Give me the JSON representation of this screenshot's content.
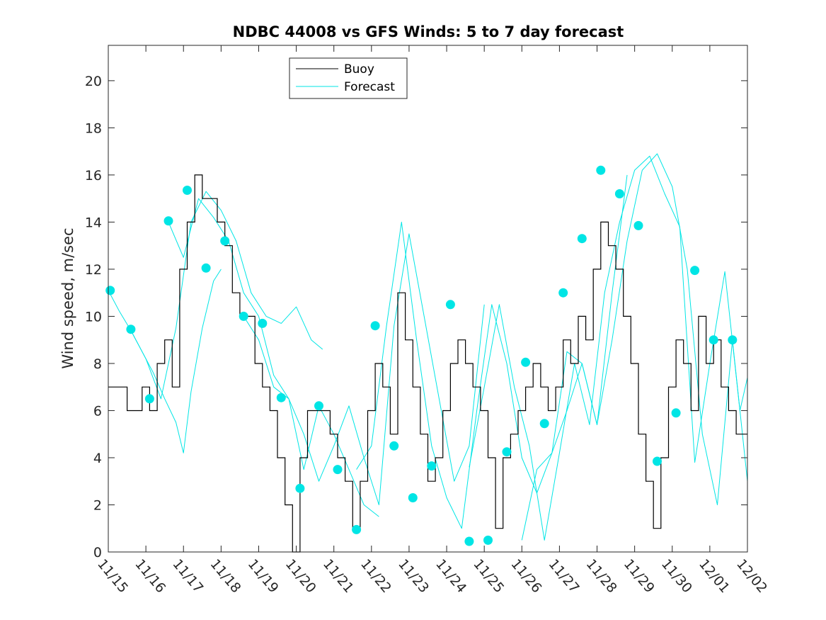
{
  "chart_data": {
    "type": "line",
    "title": "NDBC 44008 vs GFS Winds: 5 to 7 day forecast",
    "xlabel": "",
    "ylabel": "Wind speed, m/sec",
    "xlim": [
      0,
      17
    ],
    "ylim": [
      0,
      21.5
    ],
    "yticks": [
      0,
      2,
      4,
      6,
      8,
      10,
      12,
      14,
      16,
      18,
      20
    ],
    "xtick_labels": [
      "11/15",
      "11/16",
      "11/17",
      "11/18",
      "11/19",
      "11/20",
      "11/21",
      "11/22",
      "11/23",
      "11/24",
      "11/25",
      "11/26",
      "11/27",
      "11/28",
      "11/29",
      "11/30",
      "12/01",
      "12/02"
    ],
    "legend": {
      "position": "top-center",
      "entries": [
        "Buoy",
        "Forecast"
      ]
    },
    "colors": {
      "buoy": "#000000",
      "forecast": "#00e5e5",
      "axis": "#262626"
    },
    "buoy": {
      "name": "Buoy",
      "x": [
        0,
        0.3,
        0.5,
        0.7,
        0.9,
        1.1,
        1.3,
        1.5,
        1.7,
        1.9,
        2.1,
        2.3,
        2.5,
        2.7,
        2.9,
        3.1,
        3.3,
        3.5,
        3.7,
        3.9,
        4.1,
        4.3,
        4.5,
        4.7,
        4.9,
        5.1,
        5.3,
        5.5,
        5.7,
        5.9,
        6.1,
        6.3,
        6.5,
        6.7,
        6.9,
        7.1,
        7.3,
        7.5,
        7.7,
        7.9,
        8.1,
        8.3,
        8.5,
        8.7,
        8.9,
        9.1,
        9.3,
        9.5,
        9.7,
        9.9,
        10.1,
        10.3,
        10.5,
        10.7,
        10.9,
        11.1,
        11.3,
        11.5,
        11.7,
        11.9,
        12.1,
        12.3,
        12.5,
        12.7,
        12.9,
        13.1,
        13.3,
        13.5,
        13.7,
        13.9,
        14.1,
        14.3,
        14.5,
        14.7,
        14.9,
        15.1,
        15.3,
        15.5,
        15.7,
        15.9,
        16.1,
        16.3,
        16.5,
        16.7,
        17
      ],
      "values": [
        7,
        7,
        6,
        6,
        7,
        6,
        8,
        9,
        7,
        12,
        14,
        16,
        15,
        15,
        14,
        13,
        11,
        10,
        10,
        8,
        7,
        6,
        4,
        2,
        0,
        4,
        6,
        6,
        6,
        5,
        4,
        3,
        1,
        3,
        6,
        8,
        7,
        5,
        11,
        9,
        7,
        5,
        3,
        4,
        6,
        8,
        9,
        8,
        7,
        6,
        4,
        1,
        4,
        5,
        6,
        7,
        8,
        7,
        6,
        7,
        9,
        8,
        10,
        9,
        12,
        14,
        13,
        12,
        10,
        8,
        5,
        3,
        1,
        4,
        7,
        9,
        8,
        6,
        10,
        8,
        9,
        7,
        6,
        5,
        5
      ]
    },
    "forecasts": [
      {
        "name": "Forecast",
        "x": [
          0,
          0.3,
          0.6,
          0.9,
          1.2,
          1.5,
          1.8,
          2.0,
          2.2,
          2.5,
          2.8,
          3.0
        ],
        "values": [
          11.1,
          10.2,
          9.4,
          8.5,
          7.6,
          6.5,
          5.5,
          4.2,
          6.8,
          9.5,
          11.5,
          12.0
        ]
      },
      {
        "name": "Forecast",
        "x": [
          0.6,
          1.0,
          1.4,
          1.8,
          2.2,
          2.6,
          3.0,
          3.4,
          3.8,
          4.2,
          4.6,
          5.0,
          5.4,
          5.7
        ],
        "values": [
          9.4,
          8.2,
          6.5,
          9.5,
          14.0,
          15.3,
          14.5,
          13.2,
          11.0,
          10.0,
          9.7,
          10.4,
          9.0,
          8.6
        ]
      },
      {
        "name": "Forecast",
        "x": [
          1.6,
          2.0,
          2.4,
          2.8,
          3.2,
          3.6,
          4.0,
          4.4,
          4.8,
          5.2,
          5.6,
          6.0,
          6.4,
          6.8,
          7.2
        ],
        "values": [
          14.0,
          12.5,
          15.0,
          14.2,
          13.2,
          11.0,
          10.0,
          7.5,
          6.5,
          3.5,
          6.2,
          5.0,
          3.5,
          2.0,
          1.5
        ]
      },
      {
        "name": "Forecast",
        "x": [
          3.6,
          4.0,
          4.4,
          4.8,
          5.2,
          5.6,
          6.0,
          6.4,
          6.8,
          7.2,
          7.6,
          8.0,
          8.4,
          8.8,
          9.2,
          9.6,
          10.0
        ],
        "values": [
          10.0,
          9.0,
          7.0,
          6.5,
          5.0,
          3.0,
          4.5,
          6.2,
          4.0,
          2.0,
          9.6,
          13.5,
          10.0,
          6.5,
          3.0,
          4.5,
          10.5
        ]
      },
      {
        "name": "Forecast",
        "x": [
          6.6,
          7.0,
          7.4,
          7.8,
          8.2,
          8.6,
          9.0,
          9.4,
          9.8,
          10.2,
          10.6,
          11.0,
          11.4,
          11.8,
          12.2,
          12.6,
          13.0,
          13.4,
          13.8
        ],
        "values": [
          3.5,
          4.5,
          9.6,
          14.0,
          9.0,
          4.5,
          2.3,
          1.0,
          6.0,
          10.5,
          8.0,
          4.0,
          2.5,
          4.2,
          8.5,
          8.0,
          5.4,
          11.0,
          16.0
        ]
      },
      {
        "name": "Forecast",
        "x": [
          9.6,
          10.0,
          10.4,
          10.8,
          11.2,
          11.6,
          12.0,
          12.4,
          12.8,
          13.2,
          13.6,
          14.0,
          14.4,
          14.8,
          15.2,
          15.6,
          16.0,
          16.4,
          16.8,
          17.0
        ],
        "values": [
          3.6,
          7.0,
          10.5,
          7.0,
          4.5,
          0.5,
          4.2,
          8.0,
          5.4,
          11.0,
          14.0,
          16.2,
          16.8,
          15.2,
          13.8,
          3.8,
          8.0,
          11.9,
          6.0,
          7.4
        ]
      },
      {
        "name": "Forecast",
        "x": [
          11.0,
          11.4,
          11.8,
          12.2,
          12.6,
          13.0,
          13.4,
          13.8,
          14.2,
          14.6,
          15.0,
          15.4,
          15.8,
          16.2,
          16.6,
          17.0
        ],
        "values": [
          0.5,
          3.5,
          4.2,
          6.0,
          8.0,
          5.4,
          9.0,
          13.2,
          16.2,
          16.9,
          15.5,
          12.0,
          5.0,
          2.0,
          9.0,
          3.0
        ]
      }
    ],
    "forecast_markers": {
      "x": [
        0.05,
        0.6,
        1.1,
        1.6,
        2.1,
        2.6,
        3.1,
        3.6,
        4.1,
        4.6,
        5.1,
        5.6,
        6.1,
        6.6,
        7.1,
        7.6,
        8.1,
        8.6,
        9.1,
        9.6,
        10.1,
        10.6,
        11.1,
        11.6,
        12.1,
        12.6,
        13.1,
        13.6,
        14.1,
        14.6,
        15.1,
        15.6,
        16.1,
        16.6
      ],
      "values": [
        11.1,
        9.45,
        6.5,
        14.05,
        15.35,
        12.05,
        13.2,
        10.0,
        9.7,
        6.55,
        2.7,
        6.2,
        3.5,
        0.95,
        9.6,
        4.5,
        2.3,
        3.65,
        10.5,
        0.45,
        0.5,
        4.25,
        8.05,
        5.45,
        11.0,
        13.3,
        16.2,
        15.2,
        13.85,
        3.85,
        5.9,
        11.95,
        9.0,
        9.0
      ]
    }
  }
}
